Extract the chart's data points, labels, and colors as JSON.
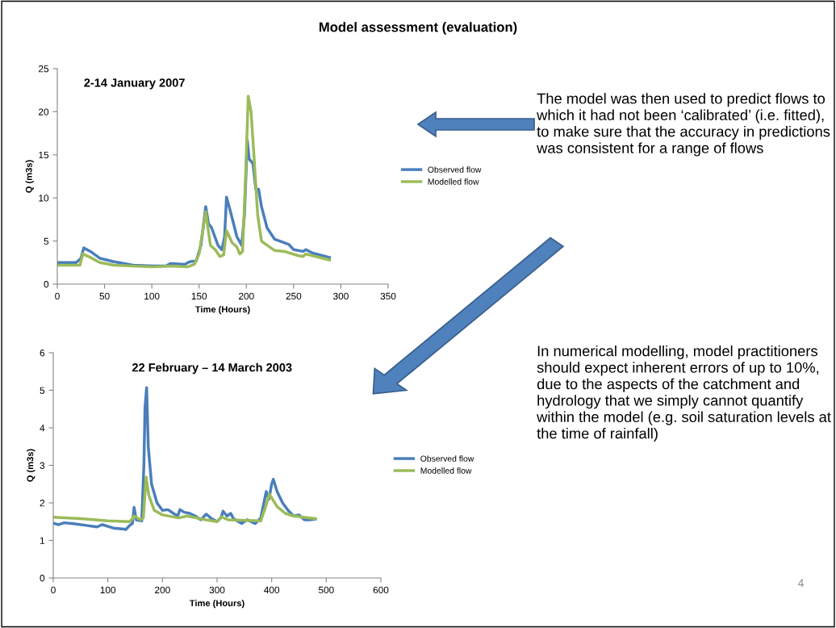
{
  "chart_data": [
    {
      "type": "line",
      "title": "2-14 January 2007",
      "xlabel": "Time (Hours)",
      "ylabel": "Q (m3s)",
      "xlim": [
        0,
        350
      ],
      "xticks": [
        0,
        50,
        100,
        150,
        200,
        250,
        300,
        350
      ],
      "ylim": [
        0,
        25
      ],
      "yticks": [
        0,
        5,
        10,
        15,
        20,
        25
      ],
      "grid": false,
      "legend": "right",
      "marker": "none",
      "line_style": "solid",
      "series": [
        {
          "name": "Observed flow",
          "color": "#4a7ebb",
          "x": [
            0,
            20,
            25,
            28,
            35,
            45,
            60,
            80,
            100,
            115,
            120,
            135,
            140,
            147,
            152,
            157,
            160,
            163,
            170,
            174,
            177,
            179,
            183,
            190,
            195,
            198,
            201,
            203,
            207,
            210,
            213,
            216,
            222,
            230,
            240,
            245,
            250,
            260,
            263,
            270,
            288
          ],
          "values": [
            2.5,
            2.5,
            3.0,
            4.2,
            3.8,
            3.0,
            2.6,
            2.2,
            2.1,
            2.1,
            2.4,
            2.3,
            2.6,
            2.7,
            4.5,
            9.0,
            7.0,
            6.6,
            4.5,
            4.0,
            5.5,
            10.1,
            8.5,
            5.5,
            4.5,
            8.0,
            16.7,
            14.5,
            14.0,
            11.0,
            11.0,
            9.0,
            6.5,
            5.2,
            4.8,
            4.6,
            4.0,
            3.8,
            4.0,
            3.6,
            3.1
          ]
        },
        {
          "name": "Modelled flow",
          "color": "#9bbb59",
          "x": [
            0,
            24,
            27,
            35,
            45,
            60,
            100,
            120,
            138,
            145,
            150,
            157,
            162,
            167,
            172,
            176,
            179,
            185,
            190,
            193,
            196,
            199,
            202,
            205,
            208,
            212,
            216,
            222,
            230,
            240,
            255,
            260,
            263,
            270,
            288
          ],
          "values": [
            2.2,
            2.2,
            3.5,
            3.1,
            2.5,
            2.2,
            2.0,
            2.1,
            2.0,
            2.3,
            3.5,
            8.4,
            4.5,
            4.0,
            3.2,
            3.4,
            6.2,
            4.8,
            4.3,
            3.5,
            3.8,
            12.0,
            21.8,
            20.0,
            15.0,
            8.0,
            5.0,
            4.5,
            3.9,
            3.8,
            3.3,
            3.2,
            3.5,
            3.3,
            2.8
          ]
        }
      ]
    },
    {
      "type": "line",
      "title": "22 February – 14 March 2003",
      "xlabel": "Time (Hours)",
      "ylabel": "Q (m3s)",
      "xlim": [
        0,
        600
      ],
      "xticks": [
        0,
        100,
        200,
        300,
        400,
        500,
        600
      ],
      "ylim": [
        0,
        6
      ],
      "yticks": [
        0,
        1,
        2,
        3,
        4,
        5,
        6
      ],
      "grid": false,
      "legend": "right",
      "marker": "none",
      "line_style": "solid",
      "series": [
        {
          "name": "Observed flow",
          "color": "#4a7ebb",
          "x": [
            0,
            10,
            20,
            40,
            60,
            80,
            90,
            110,
            130,
            133,
            140,
            145,
            148,
            152,
            162,
            166,
            168,
            171,
            174,
            180,
            190,
            200,
            210,
            220,
            228,
            232,
            240,
            250,
            260,
            270,
            280,
            290,
            300,
            307,
            311,
            318,
            325,
            330,
            345,
            355,
            370,
            380,
            385,
            390,
            395,
            400,
            403,
            410,
            420,
            430,
            440,
            450,
            460,
            470,
            480
          ],
          "values": [
            1.46,
            1.42,
            1.47,
            1.44,
            1.4,
            1.36,
            1.42,
            1.33,
            1.3,
            1.29,
            1.4,
            1.45,
            1.88,
            1.55,
            1.52,
            3.0,
            4.54,
            5.07,
            3.5,
            2.5,
            2.0,
            1.8,
            1.82,
            1.72,
            1.65,
            1.82,
            1.75,
            1.72,
            1.65,
            1.55,
            1.7,
            1.58,
            1.5,
            1.6,
            1.78,
            1.65,
            1.72,
            1.58,
            1.45,
            1.55,
            1.45,
            1.6,
            1.95,
            2.3,
            2.1,
            2.5,
            2.63,
            2.3,
            2.0,
            1.8,
            1.65,
            1.68,
            1.55,
            1.55,
            1.57
          ]
        },
        {
          "name": "Modelled flow",
          "color": "#9bbb59",
          "x": [
            0,
            50,
            100,
            140,
            145,
            148,
            160,
            165,
            170,
            175,
            185,
            200,
            230,
            245,
            280,
            300,
            308,
            320,
            380,
            390,
            396,
            410,
            425,
            440,
            480
          ],
          "values": [
            1.62,
            1.58,
            1.52,
            1.5,
            1.58,
            1.65,
            1.55,
            1.6,
            2.69,
            2.2,
            1.8,
            1.68,
            1.6,
            1.65,
            1.55,
            1.5,
            1.63,
            1.55,
            1.52,
            1.95,
            2.23,
            1.9,
            1.72,
            1.65,
            1.58
          ]
        }
      ]
    },
    {
      "type": "other",
      "title": "Model assessment (evaluation)",
      "annotations": [
        "The model was then used to predict flows to which it had not been ‘calibrated’ (i.e. fitted), to make sure that the accuracy in predictions was consistent for a range of flows",
        "In numerical modelling, model practitioners should expect inherent errors of up to 10%, due to the aspects of the catchment and hydrology that we simply cannot quantify within the model (e.g. soil saturation levels at the time of rainfall)",
        "4"
      ]
    }
  ]
}
